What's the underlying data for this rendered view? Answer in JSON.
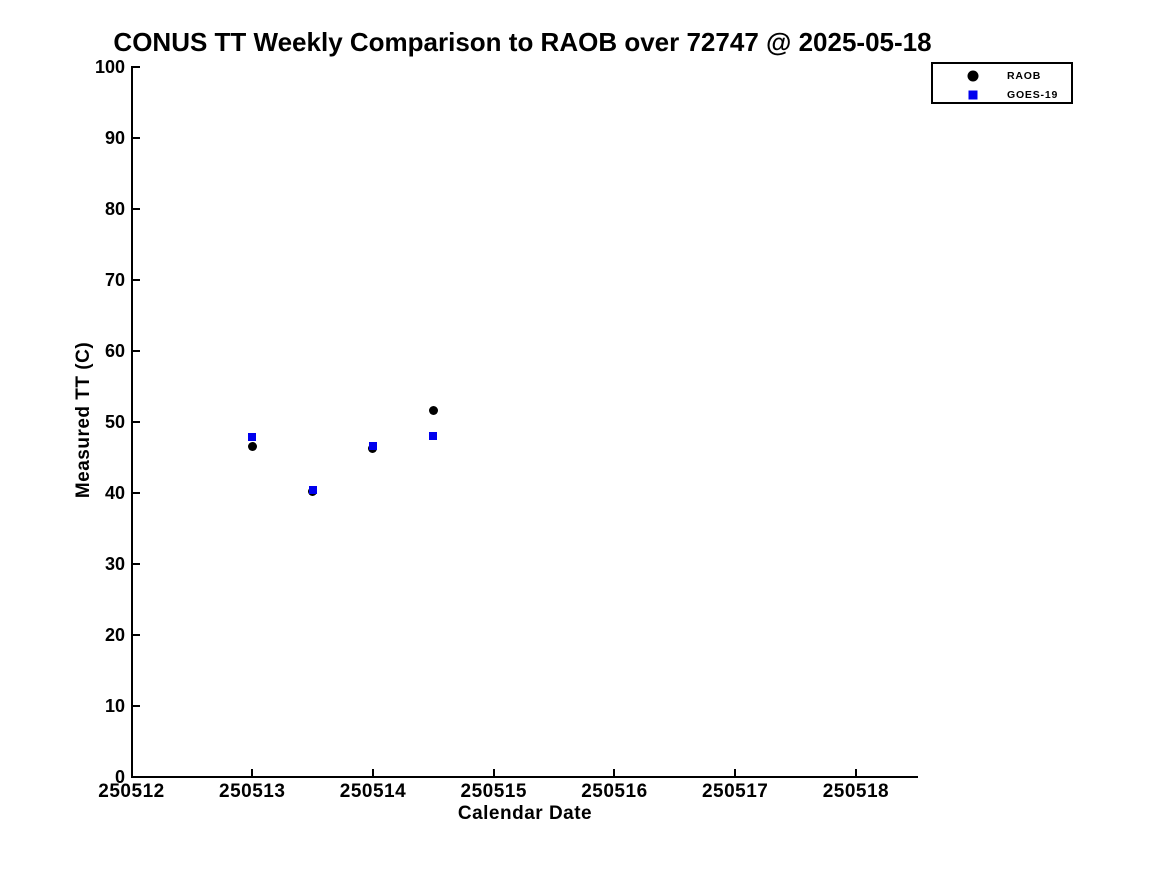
{
  "chart_data": {
    "type": "scatter",
    "title": "CONUS TT Weekly Comparison to RAOB over 72747 @ 2025-05-18",
    "xlabel": "Calendar Date",
    "ylabel": "Measured TT (C)",
    "xlim": [
      250512,
      250518.51
    ],
    "ylim": [
      0,
      100
    ],
    "x_ticks": [
      250512,
      250513,
      250514,
      250515,
      250516,
      250517,
      250518
    ],
    "y_ticks": [
      0,
      10,
      20,
      30,
      40,
      50,
      60,
      70,
      80,
      90,
      100
    ],
    "grid": false,
    "legend_position": "top-right",
    "axis_color": "#000000",
    "background_color": "#ffffff",
    "series": [
      {
        "name": "RAOB",
        "marker": "circle",
        "color": "#000000",
        "x": [
          250513.0,
          250513.5,
          250514.0,
          250514.5
        ],
        "y": [
          46.5,
          40.1,
          46.2,
          51.5
        ]
      },
      {
        "name": "GOES-19",
        "marker": "square",
        "color": "#0000ee",
        "x": [
          250513.0,
          250513.5,
          250514.0,
          250514.5
        ],
        "y": [
          47.8,
          40.4,
          46.6,
          47.9
        ]
      }
    ]
  }
}
